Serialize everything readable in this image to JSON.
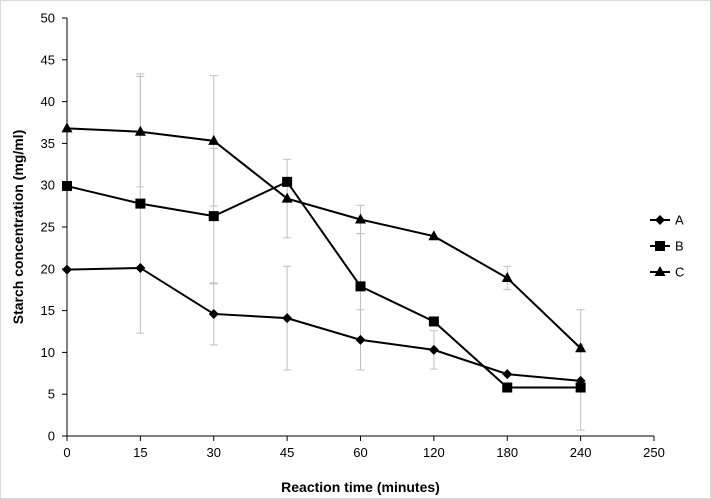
{
  "chart_data": {
    "type": "line",
    "xlabel": "Reaction time (minutes)",
    "ylabel": "Starch concentration (mg/ml)",
    "x_tick_labels": [
      "0",
      "15",
      "30",
      "45",
      "60",
      "120",
      "180",
      "240",
      "250"
    ],
    "y_ticks": [
      0,
      5,
      10,
      15,
      20,
      25,
      30,
      35,
      40,
      45,
      50
    ],
    "ylim": [
      0,
      50
    ],
    "categories": [
      "0",
      "15",
      "30",
      "45",
      "60",
      "120",
      "180",
      "240"
    ],
    "legend_position": "right",
    "series": [
      {
        "name": "A",
        "marker": "diamond",
        "values": [
          19.9,
          20.1,
          14.6,
          14.1,
          11.5,
          10.3,
          7.4,
          6.6
        ],
        "error": [
          0,
          0,
          3.7,
          6.2,
          3.6,
          2.3,
          0,
          0
        ]
      },
      {
        "name": "B",
        "marker": "square",
        "values": [
          29.9,
          27.8,
          26.3,
          30.4,
          17.9,
          13.7,
          5.8,
          5.8
        ],
        "error": [
          0,
          15.5,
          8.1,
          0,
          6.3,
          0,
          0,
          5.1
        ]
      },
      {
        "name": "C",
        "marker": "triangle",
        "values": [
          36.8,
          36.4,
          35.3,
          28.4,
          25.9,
          23.9,
          18.9,
          10.5
        ],
        "error": [
          0,
          6.6,
          7.8,
          4.7,
          1.7,
          0,
          1.4,
          4.6
        ]
      }
    ]
  }
}
